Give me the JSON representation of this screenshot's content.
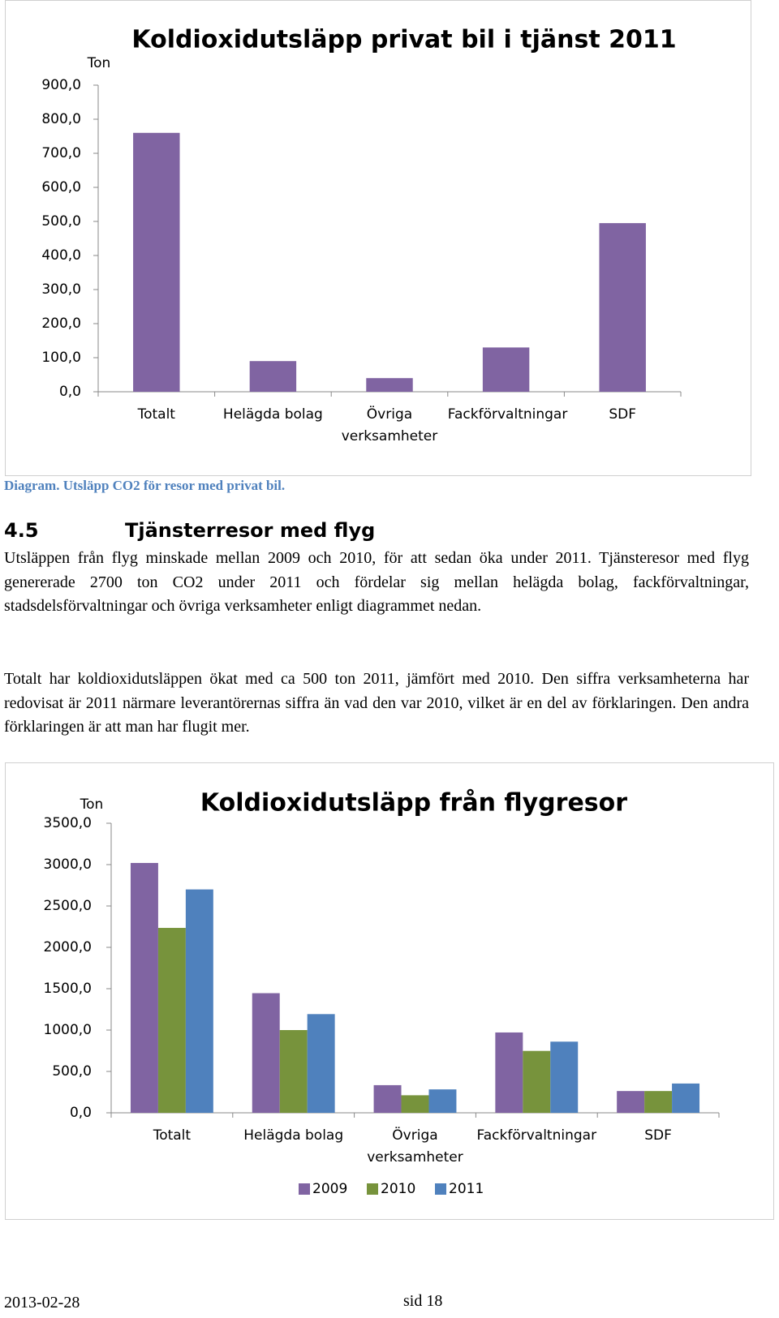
{
  "chart_data": [
    {
      "type": "bar",
      "title": "Koldioxidutsläpp privat bil i tjänst 2011",
      "y_label": "Ton",
      "categories": [
        "Totalt",
        "Helägda bolag",
        "Övriga verksamheter",
        "Fackförvaltningar",
        "SDF"
      ],
      "values": [
        760,
        90,
        40,
        130,
        495
      ],
      "color": "#8064a2",
      "ylim": [
        0,
        900
      ],
      "yticks": [
        {
          "value": 0,
          "label": "0,0"
        },
        {
          "value": 100,
          "label": "100,0"
        },
        {
          "value": 200,
          "label": "200,0"
        },
        {
          "value": 300,
          "label": "300,0"
        },
        {
          "value": 400,
          "label": "400,0"
        },
        {
          "value": 500,
          "label": "500,0"
        },
        {
          "value": 600,
          "label": "600,0"
        },
        {
          "value": 700,
          "label": "700,0"
        },
        {
          "value": 800,
          "label": "800,0"
        },
        {
          "value": 900,
          "label": "900,0"
        }
      ]
    },
    {
      "type": "bar",
      "title": "Koldioxidutsläpp från flygresor",
      "y_label": "Ton",
      "categories": [
        "Totalt",
        "Helägda bolag",
        "Övriga verksamheter",
        "Fackförvaltningar",
        "SDF"
      ],
      "series": [
        {
          "name": "2009",
          "color": "#8064a2",
          "values": [
            3020,
            1446,
            334,
            971,
            263
          ]
        },
        {
          "name": "2010",
          "color": "#77933c",
          "values": [
            2235,
            1000,
            212,
            748,
            263
          ]
        },
        {
          "name": "2011",
          "color": "#4f81bd",
          "values": [
            2700,
            1193,
            283,
            860,
            354
          ]
        }
      ],
      "ylim": [
        0,
        3500
      ],
      "yticks": [
        {
          "value": 0,
          "label": "0,0"
        },
        {
          "value": 500,
          "label": "500,0"
        },
        {
          "value": 1000,
          "label": "1000,0"
        },
        {
          "value": 1500,
          "label": "1500,0"
        },
        {
          "value": 2000,
          "label": "2000,0"
        },
        {
          "value": 2500,
          "label": "2500,0"
        },
        {
          "value": 3000,
          "label": "3000,0"
        },
        {
          "value": 3500,
          "label": "3500,0"
        }
      ],
      "legend": "bottom"
    }
  ],
  "caption": "Diagram. Utsläpp CO2 för resor med privat bil.",
  "section": {
    "number": "4.5",
    "title": "Tjänsterresor med flyg"
  },
  "paragraphs": [
    "Utsläppen från flyg minskade mellan 2009 och 2010, för att sedan öka under 2011. Tjänsteresor med flyg genererade 2700 ton CO2 under 2011 och fördelar sig mellan helägda bolag, fackförvaltningar, stadsdelsförvaltningar och övriga verksamheter enligt diagrammet nedan.",
    "Totalt har koldioxidutsläppen ökat med ca 500 ton 2011, jämfört med 2010. Den siffra verksamheterna har redovisat är 2011 närmare leverantörernas siffra än vad den var 2010, vilket är en del av förklaringen. Den andra förklaringen är att man har flugit mer."
  ],
  "footer": {
    "date": "2013-02-28",
    "page": "sid 18"
  }
}
